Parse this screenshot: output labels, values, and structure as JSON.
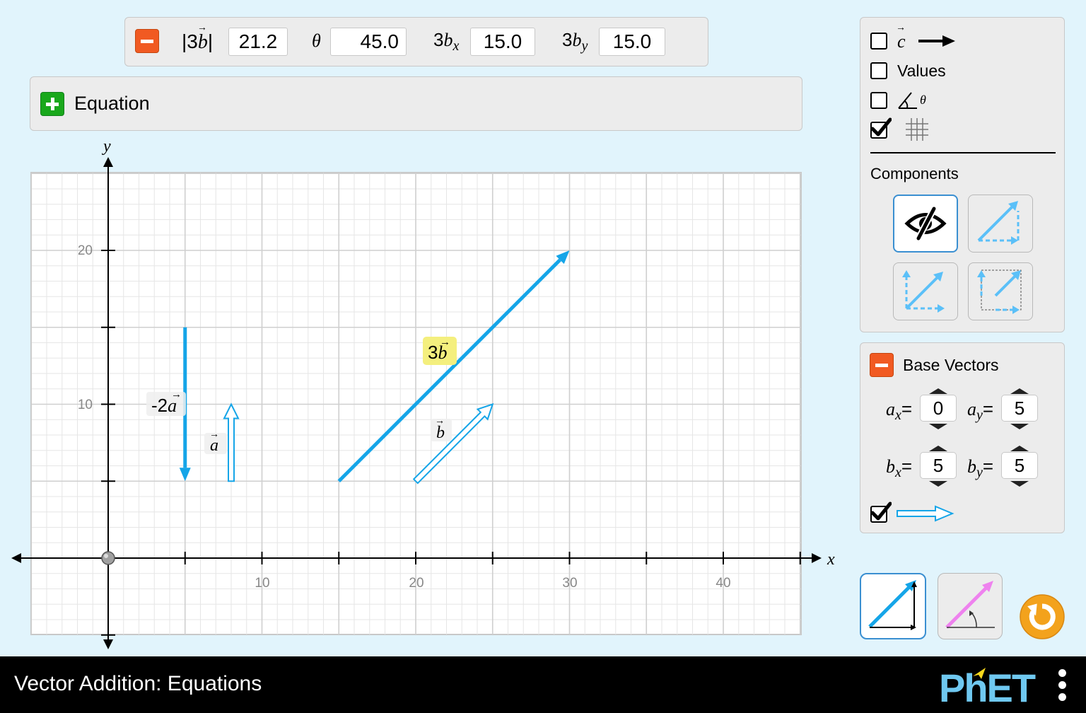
{
  "toolbar": {
    "magnitude_label": "|3",
    "magnitude_vec": "b",
    "magnitude_close": "|",
    "magnitude_value": "21.2",
    "angle_label": "θ",
    "angle_value": "45.0",
    "x_prefix": "3",
    "x_symbol": "b",
    "x_sub": "x",
    "x_value": "15.0",
    "y_prefix": "3",
    "y_symbol": "b",
    "y_sub": "y",
    "y_value": "15.0"
  },
  "equation_panel": {
    "label": "Equation"
  },
  "graph": {
    "x_axis_label": "x",
    "y_axis_label": "y",
    "x_ticks": [
      "10",
      "20",
      "30",
      "40"
    ],
    "y_ticks": [
      "10",
      "20"
    ],
    "vector_labels": {
      "neg2a_prefix": "-2",
      "neg2a_vec": "a",
      "a": "a",
      "threeb_prefix": "3",
      "threeb_vec": "b",
      "b": "b"
    }
  },
  "vectors": {
    "a": {
      "x": 0,
      "y": 5,
      "tail": [
        8,
        5
      ]
    },
    "b": {
      "x": 5,
      "y": 5,
      "tail": [
        20,
        5
      ]
    },
    "neg2a": {
      "x": 0,
      "y": -10,
      "tail": [
        5,
        15
      ]
    },
    "threeb": {
      "x": 15,
      "y": 15,
      "tail": [
        15,
        5
      ]
    }
  },
  "options": {
    "sum_vector_label": "c",
    "sum_checked": false,
    "values_label": "Values",
    "values_checked": false,
    "angle_label": "θ",
    "angle_checked": false,
    "grid_checked": true
  },
  "components": {
    "title": "Components",
    "selected": "invisible"
  },
  "base_vectors": {
    "title": "Base Vectors",
    "ax_label": "a",
    "ax_sub": "x",
    "ax": "0",
    "ay_label": "a",
    "ay_sub": "y",
    "ay": "5",
    "bx_label": "b",
    "bx_sub": "x",
    "bx": "5",
    "by_label": "b",
    "by_sub": "y",
    "by": "5",
    "equals": "=",
    "visible_checked": true
  },
  "footer": {
    "title": "Vector Addition: Equations",
    "brand": "PhET"
  },
  "colors": {
    "vector": "#15a5e8",
    "background": "#e1f4fc",
    "panel": "#ececec",
    "minus": "#f15a22",
    "plus": "#19a81c",
    "reset": "#f3a21c",
    "polar": "#ee82ee"
  }
}
